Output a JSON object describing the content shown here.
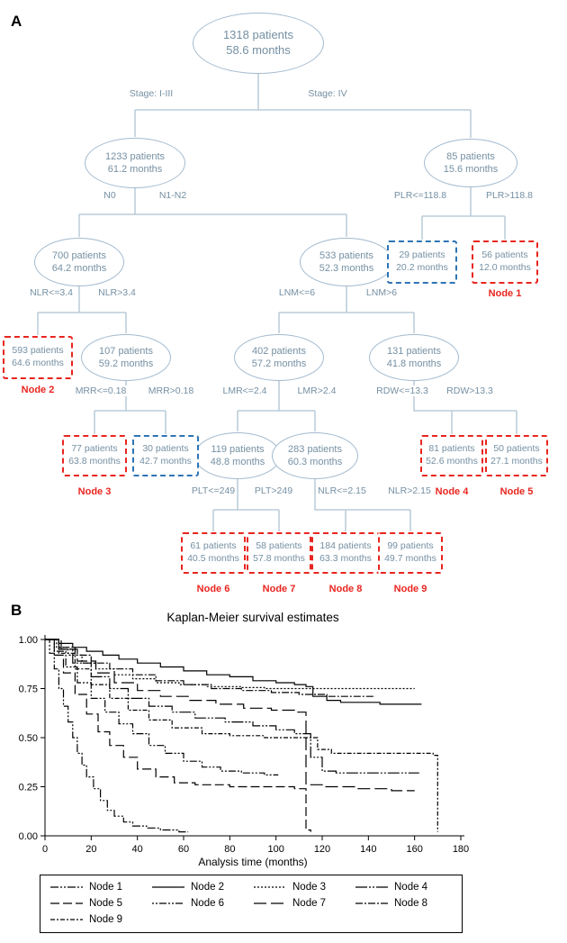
{
  "panelA": {
    "label": "A",
    "nodes": {
      "root": {
        "line1": "1318 patients",
        "line2": "58.6 months"
      },
      "s1233": {
        "line1": "1233 patients",
        "line2": "61.2 months"
      },
      "s85": {
        "line1": "85 patients",
        "line2": "15.6 months"
      },
      "s700": {
        "line1": "700 patients",
        "line2": "64.2 months"
      },
      "s533": {
        "line1": "533 patients",
        "line2": "52.3 months"
      },
      "s29": {
        "line1": "29 patients",
        "line2": "20.2 months"
      },
      "s56": {
        "line1": "56 patients",
        "line2": "12.0 months"
      },
      "s593": {
        "line1": "593 patients",
        "line2": "64.6 months"
      },
      "s107": {
        "line1": "107 patients",
        "line2": "59.2 months"
      },
      "s402": {
        "line1": "402 patients",
        "line2": "57.2 months"
      },
      "s131": {
        "line1": "131 patients",
        "line2": "41.8 months"
      },
      "s77": {
        "line1": "77 patients",
        "line2": "63.8 months"
      },
      "s30": {
        "line1": "30 patients",
        "line2": "42.7 months"
      },
      "s119": {
        "line1": "119 patients",
        "line2": "48.8 months"
      },
      "s283": {
        "line1": "283 patients",
        "line2": "60.3 months"
      },
      "s81": {
        "line1": "81 patients",
        "line2": "52.6 months"
      },
      "s50": {
        "line1": "50 patients",
        "line2": "27.1 months"
      },
      "s61": {
        "line1": "61 patients",
        "line2": "40.5 months"
      },
      "s58": {
        "line1": "58 patients",
        "line2": "57.8 months"
      },
      "s184": {
        "line1": "184 patients",
        "line2": "63.3 months"
      },
      "s99": {
        "line1": "99 patients",
        "line2": "49.7 months"
      }
    },
    "edges": {
      "stage13": "Stage: I-III",
      "stage4": "Stage: IV",
      "n0": "N0",
      "n12": "N1-N2",
      "plrLe": "PLR<=118.8",
      "plrGt": "PLR>118.8",
      "nlrLe34": "NLR<=3.4",
      "nlrGt34": "NLR>3.4",
      "lnmLe": "LNM<=6",
      "lnmGt": "LNM>6",
      "mrrLe": "MRR<=0.18",
      "mrrGt": "MRR>0.18",
      "lmrLe": "LMR<=2.4",
      "lmrGt": "LMR>2.4",
      "rdwLe": "RDW<=13.3",
      "rdwGt": "RDW>13.3",
      "pltLe": "PLT<=249",
      "pltGt": "PLT>249",
      "nlrLe215": "NLR<=2.15",
      "nlrGt215": "NLR>2.15"
    },
    "terminal_labels": {
      "node1": "Node 1",
      "node2": "Node 2",
      "node3": "Node 3",
      "node4": "Node 4",
      "node5": "Node 5",
      "node6": "Node 6",
      "node7": "Node 7",
      "node8": "Node 8",
      "node9": "Node 9"
    }
  },
  "panelB": {
    "label": "B"
  },
  "chart_data": {
    "type": "line",
    "subtype": "kaplan-meier-step",
    "title": "Kaplan-Meier survival estimates",
    "xlabel": "Analysis time (months)",
    "ylabel": "",
    "xlim": [
      0,
      180
    ],
    "ylim": [
      0,
      1
    ],
    "xticks": [
      0,
      20,
      40,
      60,
      80,
      100,
      120,
      140,
      160,
      180
    ],
    "yticks": [
      0,
      0.25,
      0.5,
      0.75,
      1
    ],
    "ytick_labels": [
      "0.00",
      "0.25",
      "0.50",
      "0.75",
      "1.00"
    ],
    "grid": false,
    "legend_position": "bottom",
    "color": "#000000",
    "series": [
      {
        "name": "Node 1",
        "dash": "9 2 2 2 2 2",
        "points": [
          [
            0,
            1
          ],
          [
            2,
            0.93
          ],
          [
            4,
            0.85
          ],
          [
            6,
            0.75
          ],
          [
            8,
            0.66
          ],
          [
            10,
            0.58
          ],
          [
            12,
            0.5
          ],
          [
            14,
            0.42
          ],
          [
            16,
            0.36
          ],
          [
            18,
            0.3
          ],
          [
            21,
            0.24
          ],
          [
            24,
            0.18
          ],
          [
            27,
            0.13
          ],
          [
            30,
            0.1
          ],
          [
            34,
            0.07
          ],
          [
            38,
            0.05
          ],
          [
            44,
            0.04
          ],
          [
            50,
            0.03
          ],
          [
            58,
            0.02
          ],
          [
            62,
            0.02
          ]
        ]
      },
      {
        "name": "Node 2",
        "dash": "",
        "points": [
          [
            0,
            1
          ],
          [
            6,
            0.98
          ],
          [
            12,
            0.96
          ],
          [
            18,
            0.94
          ],
          [
            25,
            0.92
          ],
          [
            32,
            0.9
          ],
          [
            40,
            0.88
          ],
          [
            50,
            0.86
          ],
          [
            60,
            0.84
          ],
          [
            70,
            0.82
          ],
          [
            80,
            0.81
          ],
          [
            90,
            0.79
          ],
          [
            100,
            0.78
          ],
          [
            108,
            0.77
          ],
          [
            113,
            0.76
          ],
          [
            116,
            0.71
          ],
          [
            122,
            0.69
          ],
          [
            128,
            0.68
          ],
          [
            145,
            0.67
          ],
          [
            163,
            0.67
          ]
        ]
      },
      {
        "name": "Node 3",
        "dash": "2 2",
        "points": [
          [
            0,
            1
          ],
          [
            5,
            0.96
          ],
          [
            10,
            0.92
          ],
          [
            16,
            0.88
          ],
          [
            22,
            0.85
          ],
          [
            30,
            0.82
          ],
          [
            38,
            0.8
          ],
          [
            48,
            0.78
          ],
          [
            58,
            0.77
          ],
          [
            70,
            0.76
          ],
          [
            85,
            0.755
          ],
          [
            95,
            0.75
          ],
          [
            160,
            0.75
          ]
        ]
      },
      {
        "name": "Node 4",
        "dash": "13 2 2 2 2 2",
        "points": [
          [
            0,
            1
          ],
          [
            6,
            0.95
          ],
          [
            12,
            0.88
          ],
          [
            20,
            0.81
          ],
          [
            28,
            0.75
          ],
          [
            36,
            0.7
          ],
          [
            45,
            0.66
          ],
          [
            55,
            0.63
          ],
          [
            65,
            0.6
          ],
          [
            78,
            0.58
          ],
          [
            90,
            0.56
          ],
          [
            100,
            0.54
          ],
          [
            108,
            0.52
          ],
          [
            115,
            0.4
          ],
          [
            120,
            0.33
          ],
          [
            126,
            0.32
          ],
          [
            140,
            0.32
          ],
          [
            162,
            0.32
          ]
        ]
      },
      {
        "name": "Node 5",
        "dash": "10 4",
        "points": [
          [
            0,
            1
          ],
          [
            4,
            0.92
          ],
          [
            8,
            0.83
          ],
          [
            13,
            0.72
          ],
          [
            18,
            0.62
          ],
          [
            23,
            0.53
          ],
          [
            28,
            0.46
          ],
          [
            34,
            0.4
          ],
          [
            40,
            0.34
          ],
          [
            48,
            0.3
          ],
          [
            56,
            0.27
          ],
          [
            65,
            0.26
          ],
          [
            80,
            0.25
          ],
          [
            95,
            0.25
          ],
          [
            108,
            0.24
          ],
          [
            113,
            0.03
          ],
          [
            115,
            0.02
          ]
        ]
      },
      {
        "name": "Node 6",
        "dash": "2 2 2 2 8 2",
        "points": [
          [
            0,
            1
          ],
          [
            4,
            0.94
          ],
          [
            9,
            0.86
          ],
          [
            14,
            0.78
          ],
          [
            20,
            0.7
          ],
          [
            26,
            0.63
          ],
          [
            32,
            0.57
          ],
          [
            38,
            0.52
          ],
          [
            45,
            0.46
          ],
          [
            52,
            0.42
          ],
          [
            60,
            0.38
          ],
          [
            68,
            0.35
          ],
          [
            76,
            0.33
          ],
          [
            85,
            0.32
          ],
          [
            95,
            0.31
          ],
          [
            101,
            0.31
          ]
        ]
      },
      {
        "name": "Node 7",
        "dash": "14 5",
        "points": [
          [
            0,
            1
          ],
          [
            7,
            0.95
          ],
          [
            14,
            0.89
          ],
          [
            22,
            0.83
          ],
          [
            30,
            0.78
          ],
          [
            40,
            0.74
          ],
          [
            50,
            0.71
          ],
          [
            62,
            0.69
          ],
          [
            74,
            0.67
          ],
          [
            86,
            0.65
          ],
          [
            98,
            0.64
          ],
          [
            108,
            0.63
          ],
          [
            113,
            0.26
          ],
          [
            120,
            0.25
          ],
          [
            135,
            0.24
          ],
          [
            150,
            0.23
          ],
          [
            160,
            0.23
          ]
        ]
      },
      {
        "name": "Node 8",
        "dash": "8 2 2 2",
        "points": [
          [
            0,
            1
          ],
          [
            6,
            0.96
          ],
          [
            13,
            0.92
          ],
          [
            20,
            0.88
          ],
          [
            28,
            0.85
          ],
          [
            38,
            0.82
          ],
          [
            48,
            0.79
          ],
          [
            60,
            0.77
          ],
          [
            72,
            0.75
          ],
          [
            85,
            0.74
          ],
          [
            98,
            0.73
          ],
          [
            110,
            0.72
          ],
          [
            122,
            0.71
          ],
          [
            135,
            0.71
          ],
          [
            143,
            0.71
          ]
        ]
      },
      {
        "name": "Node 9",
        "dash": "5 2 2 2",
        "points": [
          [
            0,
            1
          ],
          [
            6,
            0.93
          ],
          [
            13,
            0.85
          ],
          [
            20,
            0.77
          ],
          [
            28,
            0.7
          ],
          [
            36,
            0.64
          ],
          [
            45,
            0.59
          ],
          [
            55,
            0.55
          ],
          [
            68,
            0.52
          ],
          [
            80,
            0.51
          ],
          [
            95,
            0.5
          ],
          [
            110,
            0.5
          ],
          [
            118,
            0.44
          ],
          [
            124,
            0.42
          ],
          [
            140,
            0.42
          ],
          [
            160,
            0.42
          ],
          [
            168,
            0.41
          ],
          [
            170,
            0.02
          ]
        ]
      }
    ]
  }
}
